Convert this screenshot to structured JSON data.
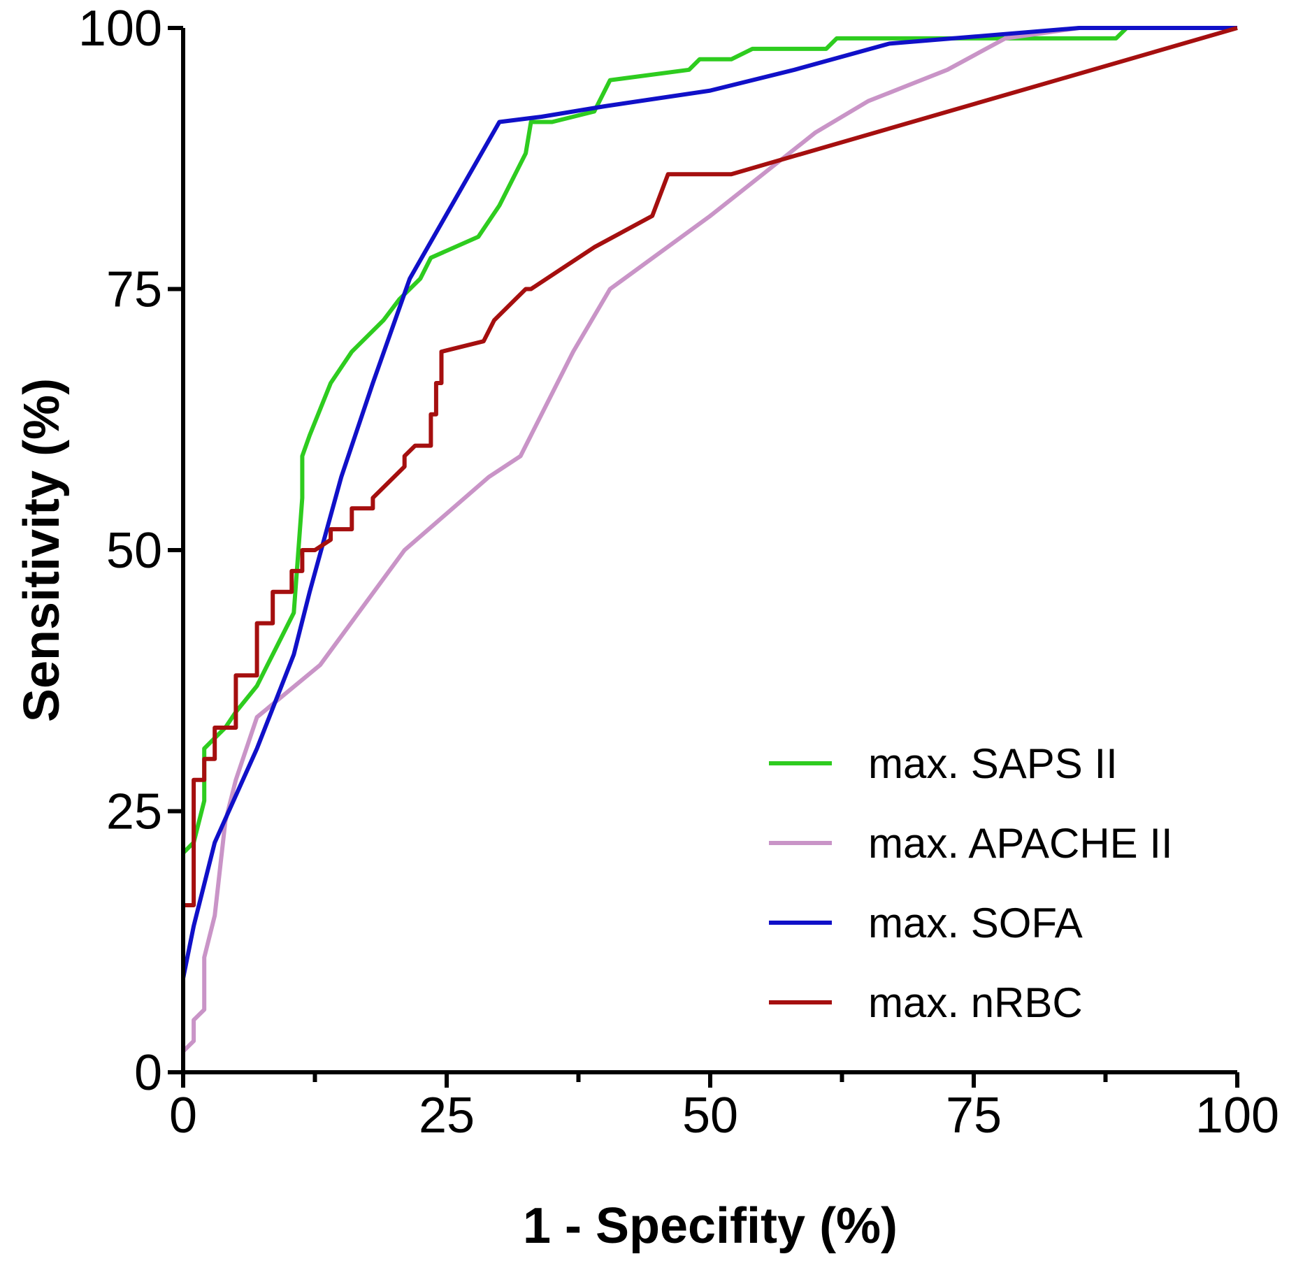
{
  "chart_data": {
    "type": "line",
    "xlabel": "1 - Specifity (%)",
    "ylabel": "Sensitivity (%)",
    "xlim": [
      0,
      100
    ],
    "ylim": [
      0,
      100
    ],
    "x_major_ticks": [
      0,
      25,
      50,
      75,
      100
    ],
    "y_major_ticks": [
      0,
      25,
      50,
      75,
      100
    ],
    "x_minor_step": 12.5,
    "grid": false,
    "legend_position": "bottom-right",
    "series": [
      {
        "name": "max. SAPS II",
        "color": "#2ecc1f",
        "x": [
          0,
          0,
          0,
          1,
          2,
          2,
          3,
          4,
          5,
          7,
          8,
          9,
          10.5,
          11.3,
          11.3,
          12,
          14,
          16,
          19,
          20.5,
          22.5,
          23.5,
          28,
          30,
          31.5,
          32.5,
          33,
          35,
          39,
          40.5,
          48,
          49,
          52,
          54,
          61,
          62,
          65,
          88,
          88.5,
          89.5,
          100
        ],
        "y": [
          0,
          9,
          21,
          22,
          26,
          31,
          32,
          33,
          34.5,
          37,
          39,
          41,
          44,
          55,
          59,
          61,
          66,
          69,
          72,
          74,
          76,
          78,
          80,
          83,
          86,
          88,
          91,
          91,
          92,
          95,
          96,
          97,
          97,
          98,
          98,
          99,
          99,
          99,
          99,
          100,
          100
        ]
      },
      {
        "name": "max. APACHE II",
        "color": "#c994c7",
        "x": [
          0,
          0,
          1,
          1,
          2,
          2,
          3,
          4,
          5,
          7,
          13,
          21,
          29,
          32,
          37,
          40.5,
          50,
          55,
          60,
          65,
          72.5,
          78,
          85,
          100
        ],
        "y": [
          0,
          2,
          3,
          5,
          6,
          11,
          15,
          24,
          28,
          34,
          39,
          50,
          57,
          59,
          69,
          75,
          82,
          86,
          90,
          93,
          96,
          99,
          100,
          100
        ]
      },
      {
        "name": "max. SOFA",
        "color": "#1010c8",
        "x": [
          0,
          0,
          1,
          3,
          7,
          10.5,
          12,
          15,
          18,
          21.5,
          30,
          34,
          40,
          50,
          58,
          67,
          85,
          100
        ],
        "y": [
          0,
          9,
          14,
          22,
          31,
          40,
          46,
          57,
          66,
          76,
          91,
          91.5,
          92.5,
          94,
          96,
          98.5,
          100,
          100
        ]
      },
      {
        "name": "max. nRBC",
        "color": "#a50f0f",
        "x": [
          0,
          0,
          0.5,
          0.5,
          1,
          1,
          2,
          2,
          3,
          3,
          5,
          5,
          7,
          7,
          8.5,
          8.5,
          10.3,
          10.3,
          11.3,
          11.3,
          12.5,
          14,
          14,
          16,
          16,
          18,
          18,
          21,
          21,
          22,
          22.5,
          22.5,
          23.5,
          23.5,
          24,
          24,
          24.5,
          24.5,
          28.5,
          29.5,
          31.5,
          32.5,
          33,
          39,
          44.5,
          46,
          52,
          100
        ],
        "y": [
          0,
          16,
          16,
          16,
          16,
          28,
          28,
          30,
          30,
          33,
          33,
          38,
          38,
          43,
          43,
          46,
          46,
          48,
          48,
          50,
          50,
          51,
          52,
          52,
          54,
          54,
          55,
          58,
          59,
          60,
          60,
          60,
          60,
          63,
          63,
          66,
          66,
          69,
          70,
          72,
          74,
          75,
          75,
          79,
          82,
          86,
          86,
          100
        ]
      }
    ]
  }
}
